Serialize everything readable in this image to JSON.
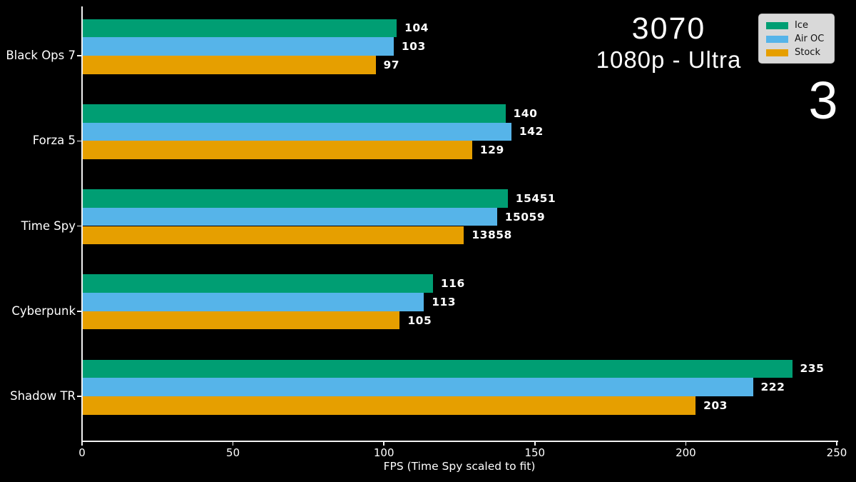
{
  "header": {
    "title": "3070",
    "subtitle": "1080p - Ultra",
    "page_number": "3"
  },
  "chart_data": {
    "type": "bar",
    "orientation": "horizontal",
    "title": "3070",
    "subtitle": "1080p - Ultra",
    "xlabel": "FPS (Time Spy scaled to fit)",
    "categories": [
      "Black Ops 7",
      "Forza 5",
      "Time Spy",
      "Cyberpunk",
      "Shadow TR"
    ],
    "series": [
      {
        "name": "Ice",
        "color": "#009E73",
        "values": [
          104,
          140,
          15451,
          116,
          235
        ]
      },
      {
        "name": "Air OC",
        "color": "#56B4E9",
        "values": [
          103,
          142,
          15059,
          113,
          222
        ]
      },
      {
        "name": "Stock",
        "color": "#E69F00",
        "values": [
          97,
          129,
          13858,
          105,
          203
        ]
      }
    ],
    "x_ticks": [
      0,
      50,
      100,
      150,
      200,
      250
    ],
    "xlim": [
      0,
      250
    ],
    "scaled_category": "Time Spy",
    "scaled_divisor": 109.75,
    "grid": "off",
    "legend_position": "upper-right",
    "background_color": "#000000",
    "text_color": "#ffffff",
    "legend_background": "#d9d9d9"
  }
}
